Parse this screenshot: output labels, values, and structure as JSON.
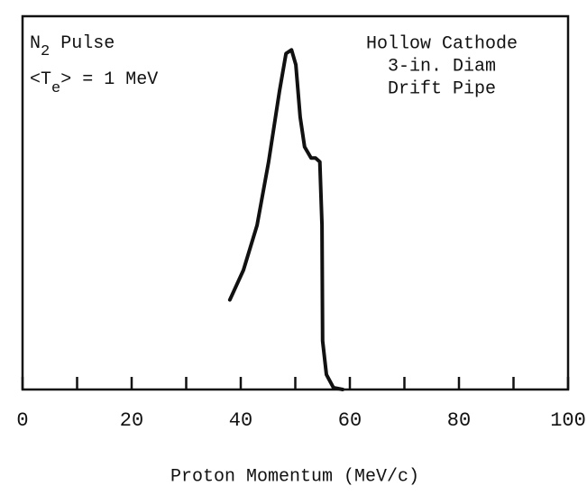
{
  "chart_data": {
    "type": "line",
    "x_label": "Proton Momentum (MeV/c)",
    "annotation_left": [
      [
        "N",
        "2",
        " Pulse"
      ],
      [
        "<T",
        "e",
        "> = 1 MeV"
      ]
    ],
    "annotation_right": [
      "Hollow Cathode",
      "3-in. Diam",
      "Drift Pipe"
    ],
    "x": [
      38.0,
      40.5,
      43.0,
      45.1,
      47.1,
      48.3,
      49.3,
      50.1,
      50.9,
      51.7,
      52.9,
      53.7,
      54.5,
      54.9,
      55.0,
      55.7,
      57.0,
      58.7
    ],
    "y": [
      0.24,
      0.32,
      0.44,
      0.61,
      0.8,
      0.9,
      0.91,
      0.87,
      0.73,
      0.65,
      0.62,
      0.62,
      0.61,
      0.44,
      0.13,
      0.04,
      0.005,
      0
    ],
    "color": "#111111",
    "xlim": [
      0,
      100
    ],
    "ylim": [
      0,
      1
    ],
    "xticks": [
      0,
      20,
      40,
      60,
      80,
      100
    ],
    "minor_xticks": [
      10,
      30,
      50,
      70,
      90
    ]
  }
}
